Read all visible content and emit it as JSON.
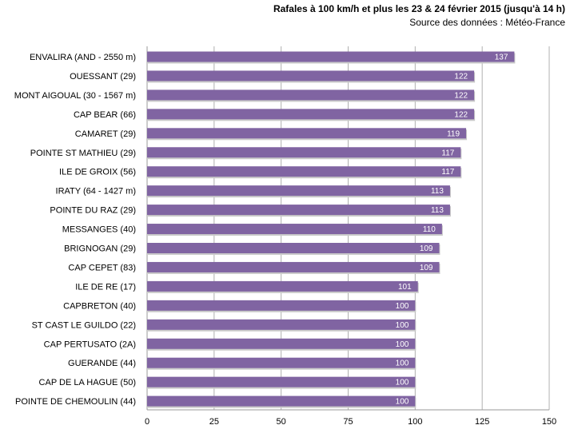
{
  "header": {
    "title": "Rafales à 100 km/h et plus les 23 & 24 février 2015 (jusqu'à 14 h)",
    "source": "Source des données : Météo-France"
  },
  "colors": {
    "bar": "#8064a2",
    "bar_shadow": "#c9c9c9",
    "gridline": "#b0b0b0",
    "axis": "#9a9a9a"
  },
  "chart_data": {
    "type": "bar",
    "orientation": "horizontal",
    "title": "Rafales à 100 km/h et plus les 23 & 24 février 2015 (jusqu'à 14 h)",
    "subtitle": "Source des données : Météo-France",
    "xlabel": "",
    "ylabel": "",
    "xlim": [
      0,
      150
    ],
    "xticks": [
      0,
      25,
      50,
      75,
      100,
      125,
      150
    ],
    "grid": "vertical",
    "legend": "none",
    "categories": [
      "ENVALIRA (AND - 2550 m)",
      "OUESSANT (29)",
      "MONT AIGOUAL (30 - 1567 m)",
      "CAP BEAR (66)",
      "CAMARET (29)",
      "POINTE ST MATHIEU (29)",
      "ILE DE GROIX (56)",
      "IRATY (64 - 1427 m)",
      "POINTE DU RAZ (29)",
      "MESSANGES (40)",
      "BRIGNOGAN (29)",
      "CAP CEPET (83)",
      "ILE DE RE (17)",
      "CAPBRETON (40)",
      "ST CAST LE GUILDO (22)",
      "CAP PERTUSATO (2A)",
      "GUERANDE (44)",
      "CAP DE LA HAGUE (50)",
      "POINTE DE CHEMOULIN (44)"
    ],
    "values": [
      137,
      122,
      122,
      122,
      119,
      117,
      117,
      113,
      113,
      110,
      109,
      109,
      101,
      100,
      100,
      100,
      100,
      100,
      100
    ]
  }
}
